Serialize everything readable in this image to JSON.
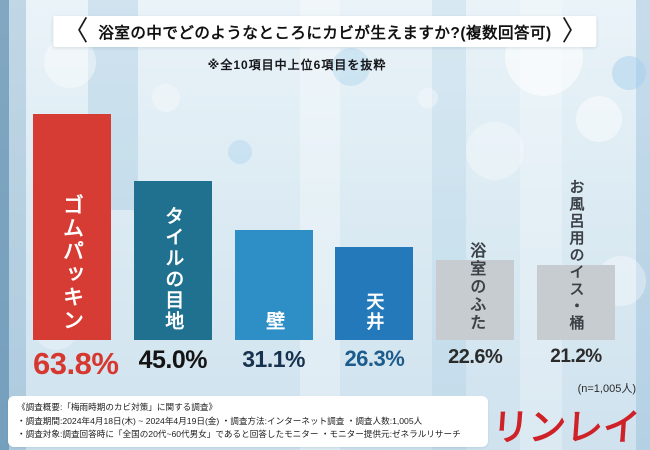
{
  "title": {
    "bracket_left": "〈",
    "bracket_right": "〉",
    "text": "浴室の中でどのようなところにカビが生えますか?(複数回答可)"
  },
  "note": "※全10項目中上位6項目を抜粋",
  "sample_size": "(n=1,005人)",
  "logo_text": "リンレイ",
  "chart_data": {
    "type": "bar",
    "title": "浴室の中でどのようなところにカビが生えますか?(複数回答可)",
    "categories": [
      "ゴムパッキン",
      "タイルの目地",
      "壁",
      "天井",
      "浴室のふた",
      "お風呂用のイス・桶"
    ],
    "values": [
      63.8,
      45.0,
      31.1,
      26.3,
      22.6,
      21.2
    ],
    "value_labels": [
      "63.8%",
      "45.0%",
      "31.1%",
      "26.3%",
      "22.6%",
      "21.2%"
    ],
    "bar_colors": [
      "#d63c33",
      "#20718f",
      "#2e8ec6",
      "#2379b9",
      "#c7ccd0",
      "#c7ccd0"
    ],
    "label_colors": [
      "#ffffff",
      "#ffffff",
      "#ffffff",
      "#ffffff",
      "#3c4148",
      "#3c4148"
    ],
    "value_colors": [
      "#d6382f",
      "#141414",
      "#16324f",
      "#1c5c8d",
      "#2b2b2b",
      "#2b2b2b"
    ],
    "label_positions": [
      "inside",
      "inside",
      "inside",
      "inside",
      "above",
      "above"
    ],
    "xlabel": "",
    "ylabel": "",
    "ylim": [
      0,
      70
    ],
    "grid": false,
    "legend": "none"
  },
  "footer": {
    "line1": "《調査概要:「梅雨時期のカビ対策」に関する調査》",
    "line2": "・調査期間:2024年4月18日(木) ~ 2024年4月19日(金)  ・調査方法:インターネット調査  ・調査人数:1,005人",
    "line3": "・調査対象:調査回答時に「全国の20代~60代男女」であると回答したモニター  ・モニター提供元:ゼネラルリサーチ"
  }
}
